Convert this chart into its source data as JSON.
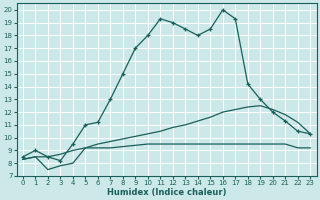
{
  "xlabel": "Humidex (Indice chaleur)",
  "xlim": [
    -0.5,
    23.5
  ],
  "ylim": [
    7,
    20.5
  ],
  "yticks": [
    7,
    8,
    9,
    10,
    11,
    12,
    13,
    14,
    15,
    16,
    17,
    18,
    19,
    20
  ],
  "xticks": [
    0,
    1,
    2,
    3,
    4,
    5,
    6,
    7,
    8,
    9,
    10,
    11,
    12,
    13,
    14,
    15,
    16,
    17,
    18,
    19,
    20,
    21,
    22,
    23
  ],
  "background_color": "#cce8e8",
  "grid_color": "#b0d8d8",
  "line_color": "#1a5f5a",
  "curve1_x": [
    0,
    1,
    2,
    3,
    4,
    5,
    6,
    7,
    8,
    9,
    10,
    11,
    12,
    13,
    14,
    15,
    16,
    17,
    18,
    19,
    20,
    21,
    22,
    23
  ],
  "curve1_y": [
    8.5,
    9.0,
    8.5,
    8.2,
    9.5,
    11.0,
    11.2,
    13.0,
    15.0,
    17.0,
    18.0,
    19.3,
    19.0,
    18.5,
    18.0,
    18.5,
    20.0,
    19.3,
    14.2,
    13.0,
    12.0,
    11.3,
    10.5,
    10.3
  ],
  "curve2_x": [
    0,
    1,
    2,
    3,
    4,
    5,
    6,
    7,
    8,
    9,
    10,
    11,
    12,
    13,
    14,
    15,
    16,
    17,
    18,
    19,
    20,
    21,
    22,
    23
  ],
  "curve2_y": [
    8.3,
    8.5,
    8.5,
    8.7,
    9.0,
    9.2,
    9.5,
    9.7,
    9.9,
    10.1,
    10.3,
    10.5,
    10.8,
    11.0,
    11.3,
    11.6,
    12.0,
    12.2,
    12.4,
    12.5,
    12.2,
    11.8,
    11.2,
    10.3
  ],
  "curve3_x": [
    0,
    1,
    2,
    3,
    4,
    5,
    6,
    7,
    8,
    9,
    10,
    11,
    12,
    13,
    14,
    15,
    16,
    17,
    18,
    19,
    20,
    21,
    22,
    23
  ],
  "curve3_y": [
    8.3,
    8.5,
    7.5,
    7.8,
    8.0,
    9.2,
    9.2,
    9.2,
    9.3,
    9.4,
    9.5,
    9.5,
    9.5,
    9.5,
    9.5,
    9.5,
    9.5,
    9.5,
    9.5,
    9.5,
    9.5,
    9.5,
    9.2,
    9.2
  ]
}
